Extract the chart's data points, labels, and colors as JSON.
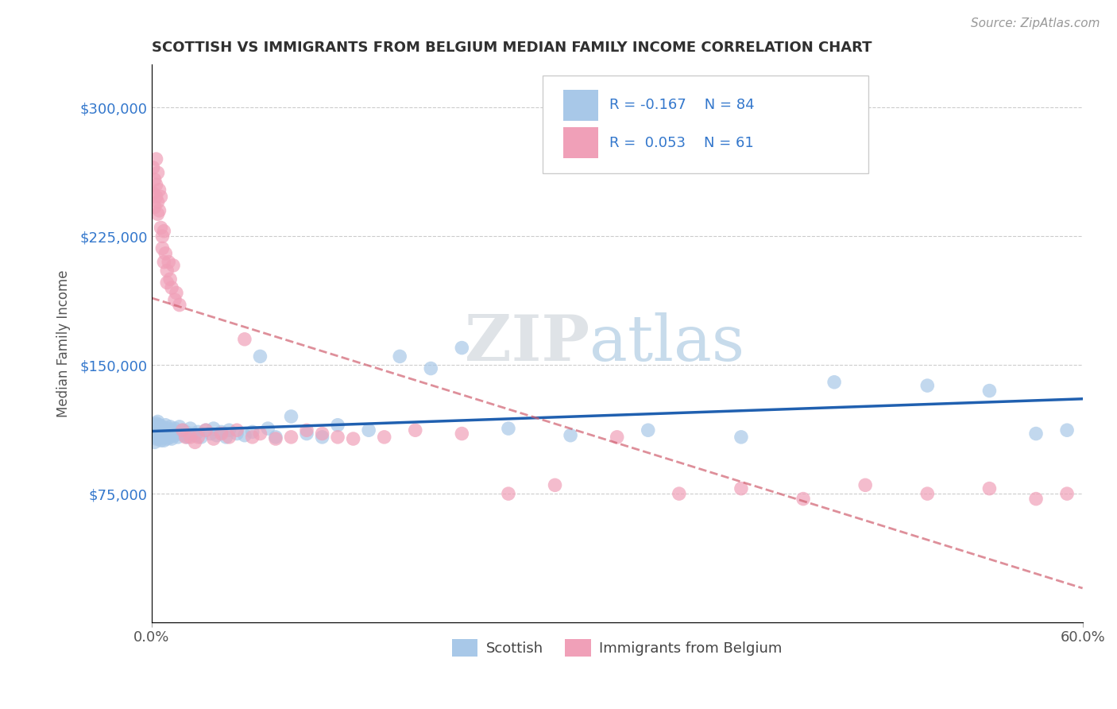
{
  "title": "SCOTTISH VS IMMIGRANTS FROM BELGIUM MEDIAN FAMILY INCOME CORRELATION CHART",
  "source_text": "Source: ZipAtlas.com",
  "ylabel": "Median Family Income",
  "xlim": [
    0.0,
    0.6
  ],
  "ylim": [
    0,
    325000
  ],
  "ytick_values": [
    75000,
    150000,
    225000,
    300000
  ],
  "ytick_labels": [
    "$75,000",
    "$150,000",
    "$225,000",
    "$300,000"
  ],
  "legend_r1": "R = -0.167",
  "legend_n1": "N = 84",
  "legend_r2": "R = 0.053",
  "legend_n2": "N = 61",
  "color_scottish": "#a8c8e8",
  "color_belgium": "#f0a0b8",
  "color_scottish_line": "#2060b0",
  "color_belgium_line": "#d06070",
  "color_title": "#303030",
  "color_ytick": "#3377cc",
  "color_source": "#999999",
  "watermark_zip": "ZIP",
  "watermark_atlas": "atlas",
  "background": "#ffffff",
  "scottish_x": [
    0.001,
    0.001,
    0.002,
    0.002,
    0.002,
    0.003,
    0.003,
    0.003,
    0.003,
    0.004,
    0.004,
    0.004,
    0.004,
    0.005,
    0.005,
    0.005,
    0.005,
    0.006,
    0.006,
    0.006,
    0.006,
    0.007,
    0.007,
    0.007,
    0.008,
    0.008,
    0.008,
    0.009,
    0.009,
    0.01,
    0.01,
    0.01,
    0.011,
    0.011,
    0.012,
    0.012,
    0.013,
    0.013,
    0.014,
    0.015,
    0.015,
    0.016,
    0.017,
    0.018,
    0.019,
    0.02,
    0.021,
    0.022,
    0.023,
    0.025,
    0.026,
    0.028,
    0.03,
    0.032,
    0.035,
    0.038,
    0.04,
    0.042,
    0.045,
    0.048,
    0.05,
    0.055,
    0.06,
    0.065,
    0.07,
    0.075,
    0.08,
    0.09,
    0.1,
    0.11,
    0.12,
    0.14,
    0.16,
    0.18,
    0.2,
    0.23,
    0.27,
    0.32,
    0.38,
    0.44,
    0.5,
    0.54,
    0.57,
    0.59
  ],
  "scottish_y": [
    108000,
    112000,
    110000,
    115000,
    105000,
    113000,
    109000,
    116000,
    107000,
    111000,
    114000,
    108000,
    117000,
    110000,
    112000,
    107000,
    115000,
    109000,
    113000,
    106000,
    111000,
    108000,
    114000,
    110000,
    109000,
    112000,
    106000,
    115000,
    108000,
    110000,
    113000,
    107000,
    111000,
    109000,
    114000,
    108000,
    112000,
    107000,
    110000,
    113000,
    109000,
    111000,
    108000,
    114000,
    110000,
    112000,
    109000,
    111000,
    108000,
    113000,
    110000,
    109000,
    111000,
    108000,
    112000,
    110000,
    113000,
    109000,
    111000,
    108000,
    112000,
    110000,
    109000,
    111000,
    155000,
    113000,
    108000,
    120000,
    110000,
    108000,
    115000,
    112000,
    155000,
    148000,
    160000,
    113000,
    109000,
    112000,
    108000,
    140000,
    138000,
    135000,
    110000,
    112000
  ],
  "belgium_x": [
    0.001,
    0.001,
    0.002,
    0.002,
    0.003,
    0.003,
    0.003,
    0.004,
    0.004,
    0.004,
    0.005,
    0.005,
    0.006,
    0.006,
    0.007,
    0.007,
    0.008,
    0.008,
    0.009,
    0.01,
    0.01,
    0.011,
    0.012,
    0.013,
    0.014,
    0.015,
    0.016,
    0.018,
    0.02,
    0.022,
    0.025,
    0.028,
    0.03,
    0.035,
    0.04,
    0.045,
    0.05,
    0.055,
    0.06,
    0.065,
    0.07,
    0.08,
    0.09,
    0.1,
    0.11,
    0.12,
    0.13,
    0.15,
    0.17,
    0.2,
    0.23,
    0.26,
    0.3,
    0.34,
    0.38,
    0.42,
    0.46,
    0.5,
    0.54,
    0.57,
    0.59
  ],
  "belgium_y": [
    250000,
    265000,
    258000,
    242000,
    248000,
    270000,
    255000,
    238000,
    262000,
    245000,
    252000,
    240000,
    248000,
    230000,
    225000,
    218000,
    228000,
    210000,
    215000,
    205000,
    198000,
    210000,
    200000,
    195000,
    208000,
    188000,
    192000,
    185000,
    112000,
    108000,
    108000,
    105000,
    108000,
    112000,
    107000,
    110000,
    108000,
    112000,
    165000,
    108000,
    110000,
    107000,
    108000,
    112000,
    110000,
    108000,
    107000,
    108000,
    112000,
    110000,
    75000,
    80000,
    108000,
    75000,
    78000,
    72000,
    80000,
    75000,
    78000,
    72000,
    75000
  ]
}
